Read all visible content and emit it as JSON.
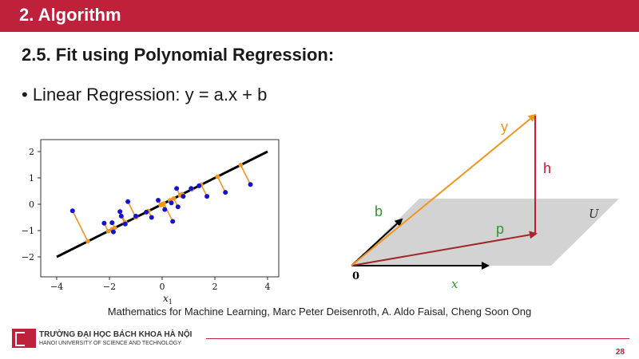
{
  "header": {
    "title": "2. Algorithm"
  },
  "subtitle": "2.5. Fit using Polynomial Regression:",
  "bullet": "• Linear Regression: y = a.x + b",
  "plot": {
    "x_ticks": [
      "−4",
      "−2",
      "0",
      "2",
      "4"
    ],
    "y_ticks": [
      "2",
      "1",
      "0",
      "−1",
      "−2"
    ],
    "xlabel": "x",
    "xlabel_sub": "1"
  },
  "chart_data": {
    "type": "scatter",
    "xlim": [
      -4.2,
      4.2
    ],
    "ylim": [
      -2.5,
      2.1
    ],
    "points": [
      [
        -3.4,
        -0.25
      ],
      [
        -2.2,
        -0.72
      ],
      [
        -1.9,
        -0.7
      ],
      [
        -1.85,
        -1.05
      ],
      [
        -1.6,
        -0.28
      ],
      [
        -1.55,
        -0.45
      ],
      [
        -1.3,
        0.1
      ],
      [
        -1.4,
        -0.75
      ],
      [
        -1.0,
        -0.45
      ],
      [
        -0.6,
        -0.3
      ],
      [
        -0.4,
        -0.5
      ],
      [
        -0.15,
        0.15
      ],
      [
        0.1,
        -0.2
      ],
      [
        0.35,
        0.05
      ],
      [
        0.4,
        -0.65
      ],
      [
        0.55,
        0.6
      ],
      [
        0.6,
        -0.1
      ],
      [
        0.8,
        0.3
      ],
      [
        1.1,
        0.6
      ],
      [
        1.4,
        0.7
      ],
      [
        1.7,
        0.3
      ],
      [
        2.4,
        0.45
      ],
      [
        3.35,
        0.75
      ]
    ],
    "fit_line": {
      "slope": 0.5,
      "intercept": 0.0,
      "x_range": [
        -4.0,
        4.0
      ]
    }
  },
  "diagram": {
    "label_y": "y",
    "label_h": "h",
    "label_b": "b",
    "label_p": "p",
    "label_U": "U",
    "label_x": "x",
    "label_0": "0",
    "colors": {
      "y": "#f0961e",
      "h": "#d0182a",
      "b": "#2e9a2e",
      "p": "#a02828",
      "plane": "#d3d3d3"
    }
  },
  "citation": "Mathematics for Machine Learning, Marc Peter Deisenroth, A. Aldo Faisal, Cheng Soon Ong",
  "footer": {
    "university_vn": "TRƯỜNG ĐẠI HỌC BÁCH KHOA HÀ NỘI",
    "university_en": "HANOI UNIVERSITY OF SCIENCE AND TECHNOLOGY",
    "page_number": "28"
  }
}
